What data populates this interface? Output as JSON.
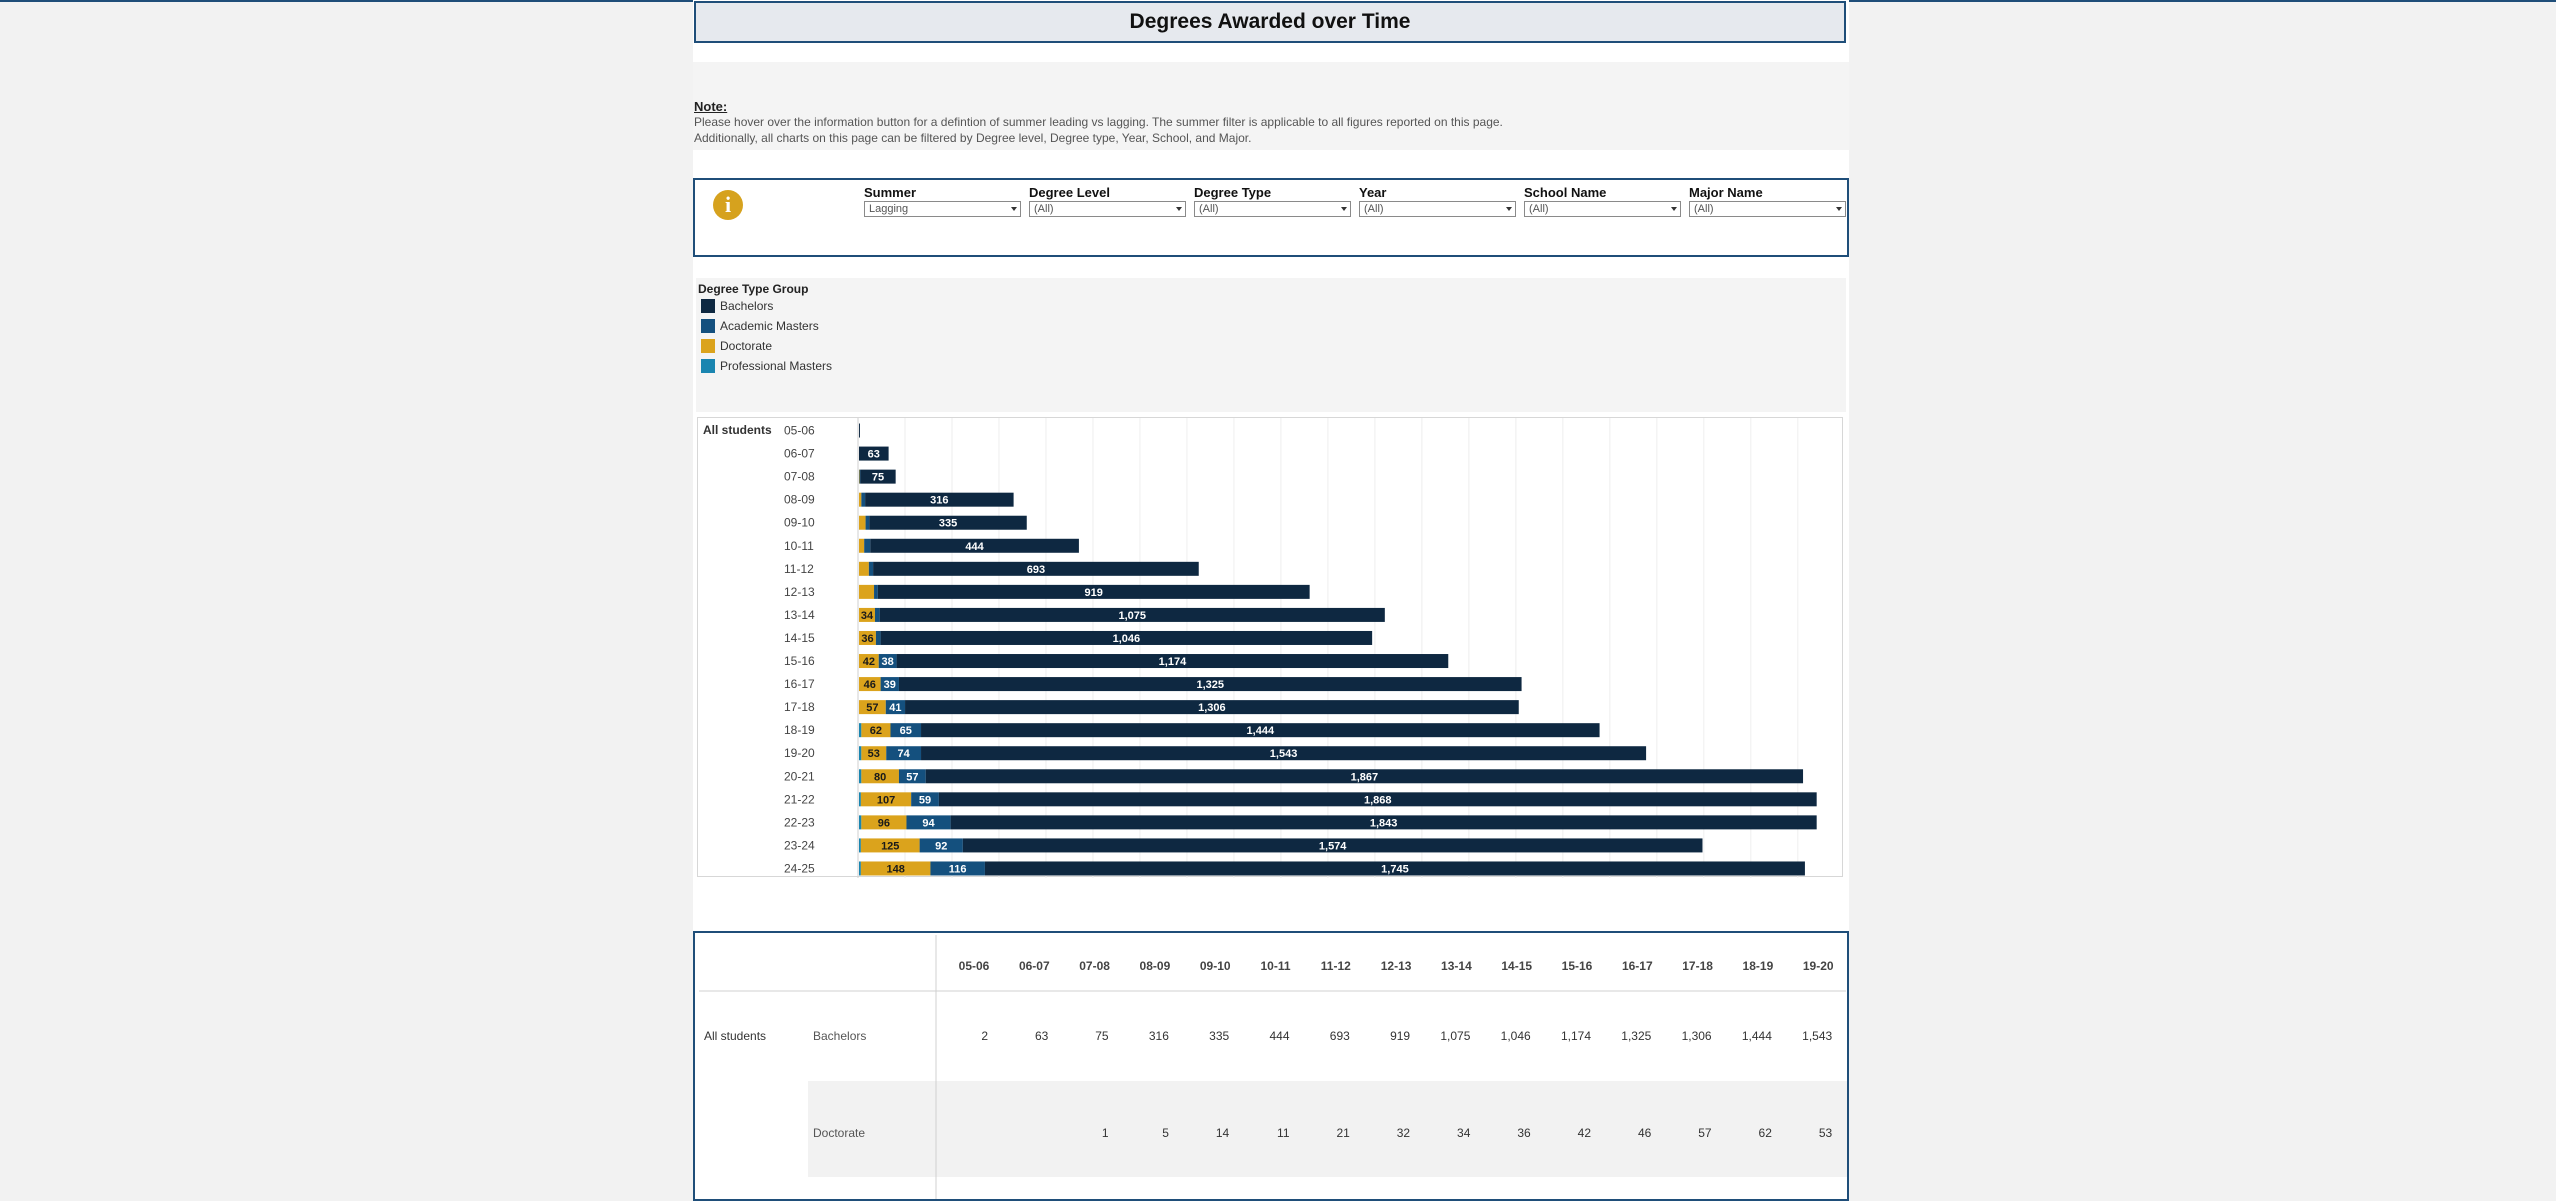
{
  "page": {
    "title": "Degrees Awarded over Time",
    "note": {
      "label": "Note:",
      "line1": "Please hover over the information button for a defintion of summer leading vs lagging. The summer filter is applicable to all figures reported on this page.",
      "line2": "Additionally, all charts on this page can be filtered by  Degree level,  Degree type, Year, School, and Major."
    }
  },
  "filters": [
    {
      "label": "Summer",
      "value": "Lagging"
    },
    {
      "label": "Degree Level",
      "value": "(All)"
    },
    {
      "label": "Degree Type",
      "value": "(All)"
    },
    {
      "label": "Year",
      "value": "(All)"
    },
    {
      "label": "School Name",
      "value": "(All)"
    },
    {
      "label": "Major Name",
      "value": "(All)"
    }
  ],
  "icons": {
    "info": "info-icon",
    "dropdown": "chevron-down-icon"
  },
  "legend": {
    "title": "Degree Type Group",
    "items": [
      {
        "label": "Bachelors",
        "color": "#0e2841"
      },
      {
        "label": "Academic Masters",
        "color": "#14507e"
      },
      {
        "label": "Doctorate",
        "color": "#dba31c"
      },
      {
        "label": "Professional Masters",
        "color": "#1a85b0"
      }
    ]
  },
  "chart_data": {
    "type": "bar",
    "orientation": "horizontal",
    "stacked": true,
    "row_label": "All students",
    "categories": [
      "05-06",
      "06-07",
      "07-08",
      "08-09",
      "09-10",
      "10-11",
      "11-12",
      "12-13",
      "13-14",
      "14-15",
      "15-16",
      "16-17",
      "17-18",
      "18-19",
      "19-20",
      "20-21",
      "21-22",
      "22-23",
      "23-24",
      "24-25"
    ],
    "series": [
      {
        "name": "Professional Masters",
        "color": "#1a85b0",
        "values": [
          0,
          0,
          0,
          0,
          0,
          0,
          0,
          0,
          0,
          0,
          0,
          0,
          0,
          5,
          5,
          5,
          4,
          5,
          4,
          4
        ]
      },
      {
        "name": "Doctorate",
        "color": "#dba31c",
        "values": [
          0,
          0,
          1,
          5,
          14,
          11,
          21,
          32,
          34,
          36,
          42,
          46,
          57,
          62,
          53,
          80,
          107,
          96,
          125,
          148
        ]
      },
      {
        "name": "Academic Masters",
        "color": "#14507e",
        "values": [
          0,
          0,
          2,
          8,
          8,
          13,
          9,
          8,
          10,
          10,
          38,
          39,
          41,
          65,
          74,
          57,
          59,
          94,
          92,
          116
        ]
      },
      {
        "name": "Bachelors",
        "color": "#0e2841",
        "values": [
          2,
          63,
          75,
          316,
          335,
          444,
          693,
          919,
          1075,
          1046,
          1174,
          1325,
          1306,
          1444,
          1543,
          1867,
          1868,
          1843,
          1574,
          1745
        ]
      }
    ],
    "data_labels": {
      "Doctorate": [
        "",
        "",
        "",
        "",
        "",
        "",
        "",
        "",
        "34",
        "36",
        "42",
        "46",
        "57",
        "62",
        "53",
        "80",
        "107",
        "96",
        "125",
        "148"
      ],
      "Academic Masters": [
        "",
        "",
        "",
        "",
        "",
        "",
        "",
        "",
        "",
        "",
        "38",
        "39",
        "41",
        "65",
        "74",
        "57",
        "59",
        "94",
        "92",
        "116"
      ],
      "Bachelors": [
        "",
        "63",
        "75",
        "316",
        "335",
        "444",
        "693",
        "919",
        "1,075",
        "1,046",
        "1,174",
        "1,325",
        "1,306",
        "1,444",
        "1,543",
        "1,867",
        "1,868",
        "1,843",
        "1,574",
        "1,745"
      ]
    },
    "xlim": [
      0,
      2160
    ],
    "x_gridlines": true
  },
  "table": {
    "row_group": "All students",
    "columns": [
      "05-06",
      "06-07",
      "07-08",
      "08-09",
      "09-10",
      "10-11",
      "11-12",
      "12-13",
      "13-14",
      "14-15",
      "15-16",
      "16-17",
      "17-18",
      "18-19",
      "19-20"
    ],
    "rows": [
      {
        "label": "Bachelors",
        "values": [
          "2",
          "63",
          "75",
          "316",
          "335",
          "444",
          "693",
          "919",
          "1,075",
          "1,046",
          "1,174",
          "1,325",
          "1,306",
          "1,444",
          "1,543"
        ]
      },
      {
        "label": "Doctorate",
        "values": [
          "",
          "",
          "1",
          "5",
          "14",
          "11",
          "21",
          "32",
          "34",
          "36",
          "42",
          "46",
          "57",
          "62",
          "53"
        ]
      }
    ]
  }
}
